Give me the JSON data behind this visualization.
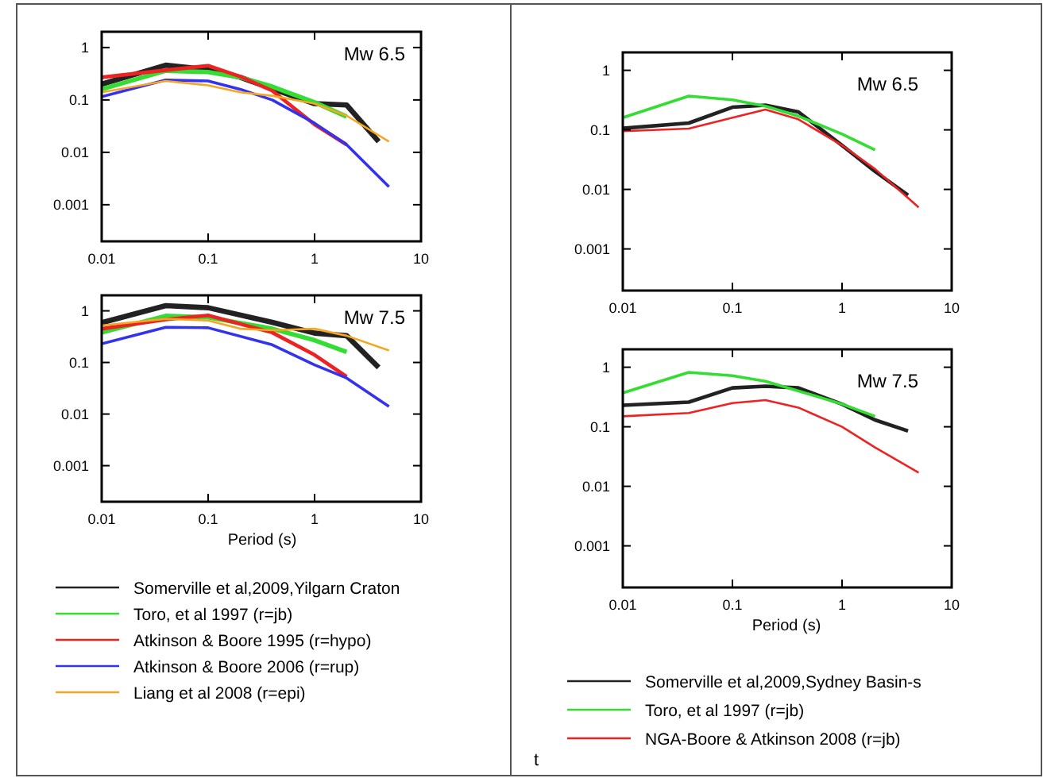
{
  "chart_data": [
    {
      "type": "line",
      "xlim": [
        0.01,
        10
      ],
      "ylim": [
        0.0002,
        2
      ],
      "xticks": [
        0.01,
        0.1,
        1,
        10
      ],
      "yticks": [
        0.001,
        0.01,
        0.1,
        1
      ],
      "log": "xy",
      "grid": false,
      "legend": false,
      "marker": "none",
      "line_style": "solid",
      "annotations": [
        "Mw 6.5"
      ],
      "series": [
        {
          "color": "#222222",
          "x": [
            0.01,
            0.04,
            0.1,
            0.2,
            1,
            2,
            4
          ],
          "values": [
            0.2,
            0.46,
            0.38,
            0.27,
            0.085,
            0.08,
            0.016
          ]
        },
        {
          "color": "#33dd33",
          "x": [
            0.01,
            0.04,
            0.1,
            0.2,
            0.4,
            1,
            2
          ],
          "values": [
            0.16,
            0.36,
            0.34,
            0.27,
            0.18,
            0.09,
            0.048
          ]
        },
        {
          "color": "#ee2222",
          "x": [
            0.01,
            0.04,
            0.1,
            0.2,
            0.4,
            1,
            2
          ],
          "values": [
            0.27,
            0.37,
            0.45,
            0.28,
            0.15,
            0.034,
            0.014
          ]
        },
        {
          "color": "#3333ee",
          "x": [
            0.01,
            0.04,
            0.1,
            0.2,
            0.4,
            1,
            2,
            5
          ],
          "values": [
            0.115,
            0.24,
            0.23,
            0.16,
            0.1,
            0.036,
            0.014,
            0.0022
          ]
        },
        {
          "color": "#f5a623",
          "x": [
            0.01,
            0.04,
            0.1,
            0.2,
            0.4,
            1,
            2,
            5
          ],
          "values": [
            0.14,
            0.23,
            0.19,
            0.14,
            0.12,
            0.085,
            0.05,
            0.016
          ]
        }
      ]
    },
    {
      "type": "line",
      "xlim": [
        0.01,
        10
      ],
      "ylim": [
        0.0002,
        2
      ],
      "xticks": [
        0.01,
        0.1,
        1,
        10
      ],
      "yticks": [
        0.001,
        0.01,
        0.1,
        1
      ],
      "log": "xy",
      "grid": false,
      "legend": "bottom",
      "marker": "none",
      "line_style": "solid",
      "xlabel": "Period (s)",
      "annotations": [
        "Mw 7.5"
      ],
      "series": [
        {
          "name": "Somerville et al,2009,Yilgarn Craton",
          "color": "#222222",
          "x": [
            0.01,
            0.04,
            0.1,
            0.4,
            1,
            2,
            4
          ],
          "values": [
            0.59,
            1.26,
            1.15,
            0.6,
            0.37,
            0.33,
            0.08
          ]
        },
        {
          "name": "Toro, et al 1997 (r=jb)",
          "color": "#33dd33",
          "x": [
            0.01,
            0.04,
            0.1,
            0.4,
            1,
            2
          ],
          "values": [
            0.38,
            0.8,
            0.75,
            0.45,
            0.27,
            0.16
          ]
        },
        {
          "name": "Atkinson & Boore 1995 (r=hypo)",
          "color": "#ee2222",
          "x": [
            0.01,
            0.04,
            0.1,
            0.4,
            1,
            2
          ],
          "values": [
            0.45,
            0.68,
            0.82,
            0.38,
            0.14,
            0.053
          ]
        },
        {
          "name": "Atkinson & Boore 2006 (r=rup)",
          "color": "#3333ee",
          "x": [
            0.01,
            0.04,
            0.1,
            0.4,
            1,
            2,
            5
          ],
          "values": [
            0.23,
            0.48,
            0.47,
            0.22,
            0.09,
            0.05,
            0.014
          ]
        },
        {
          "name": "Liang et al 2008 (r=epi)",
          "color": "#f5a623",
          "x": [
            0.01,
            0.04,
            0.1,
            0.2,
            0.4,
            1,
            2,
            5
          ],
          "values": [
            0.52,
            0.7,
            0.65,
            0.45,
            0.42,
            0.45,
            0.33,
            0.17
          ]
        }
      ]
    },
    {
      "type": "line",
      "xlim": [
        0.01,
        10
      ],
      "ylim": [
        0.0002,
        2
      ],
      "xticks": [
        0.01,
        0.1,
        1,
        10
      ],
      "yticks": [
        0.001,
        0.01,
        0.1,
        1
      ],
      "log": "xy",
      "grid": false,
      "legend": false,
      "marker": "none",
      "line_style": "solid",
      "annotations": [
        "Mw 6.5"
      ],
      "series": [
        {
          "color": "#222222",
          "x": [
            0.01,
            0.04,
            0.1,
            0.2,
            0.4,
            1,
            2,
            4
          ],
          "values": [
            0.106,
            0.13,
            0.24,
            0.26,
            0.2,
            0.055,
            0.02,
            0.008
          ]
        },
        {
          "color": "#33dd33",
          "x": [
            0.01,
            0.04,
            0.1,
            0.2,
            0.4,
            1,
            2
          ],
          "values": [
            0.16,
            0.37,
            0.32,
            0.25,
            0.17,
            0.085,
            0.046
          ]
        },
        {
          "color": "#ee2222",
          "x": [
            0.01,
            0.04,
            0.1,
            0.2,
            0.4,
            1,
            2,
            5
          ],
          "values": [
            0.095,
            0.105,
            0.16,
            0.22,
            0.15,
            0.055,
            0.022,
            0.005
          ]
        }
      ]
    },
    {
      "type": "line",
      "xlim": [
        0.01,
        10
      ],
      "ylim": [
        0.0002,
        2
      ],
      "xticks": [
        0.01,
        0.1,
        1,
        10
      ],
      "yticks": [
        0.001,
        0.01,
        0.1,
        1
      ],
      "log": "xy",
      "grid": false,
      "legend": "bottom",
      "marker": "none",
      "line_style": "solid",
      "xlabel": "Period (s)",
      "annotations": [
        "Mw 7.5",
        "t"
      ],
      "series": [
        {
          "name": "Somerville et al,2009,Sydney Basin-s",
          "color": "#222222",
          "x": [
            0.01,
            0.04,
            0.1,
            0.2,
            0.4,
            1,
            2,
            4
          ],
          "values": [
            0.23,
            0.26,
            0.45,
            0.48,
            0.45,
            0.24,
            0.13,
            0.085
          ]
        },
        {
          "name": "Toro, et al 1997 (r=jb)",
          "color": "#33dd33",
          "x": [
            0.01,
            0.04,
            0.1,
            0.2,
            0.4,
            1,
            2
          ],
          "values": [
            0.37,
            0.82,
            0.72,
            0.58,
            0.4,
            0.24,
            0.15
          ]
        },
        {
          "name": "NGA-Boore & Atkinson 2008 (r=jb)",
          "color": "#ee2222",
          "x": [
            0.01,
            0.04,
            0.1,
            0.2,
            0.4,
            1,
            2,
            5
          ],
          "values": [
            0.15,
            0.17,
            0.25,
            0.28,
            0.21,
            0.1,
            0.045,
            0.017
          ]
        }
      ]
    }
  ]
}
